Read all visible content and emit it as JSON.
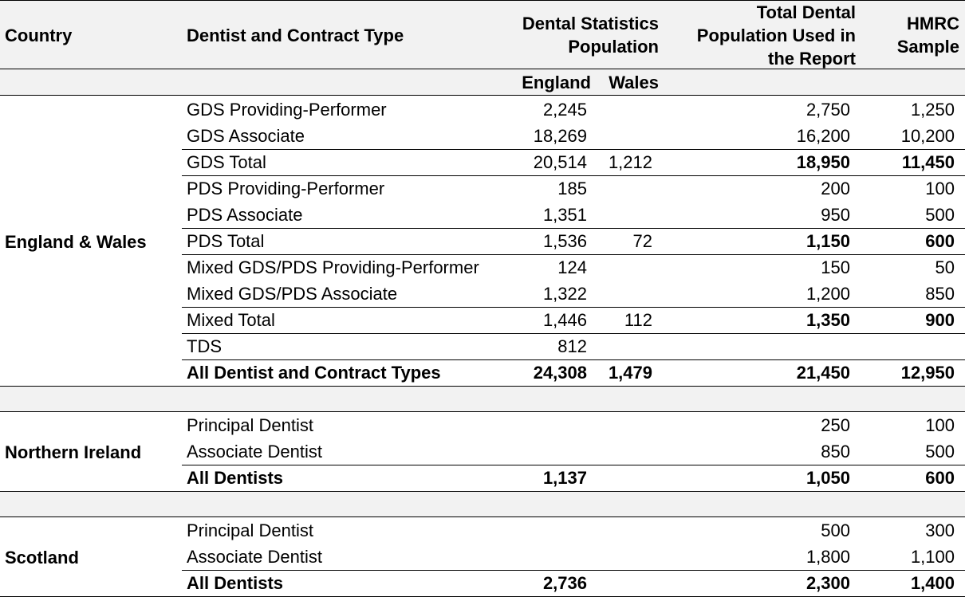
{
  "headers": {
    "country": "Country",
    "type": "Dentist and Contract Type",
    "dental_stats": [
      "Dental Statistics",
      "Population"
    ],
    "total_pop": [
      "Total Dental",
      "Population Used in",
      "the Report"
    ],
    "hmrc": [
      "HMRC",
      "Sample"
    ],
    "england": "England",
    "wales": "Wales"
  },
  "groups": [
    {
      "country": "England & Wales",
      "rows": [
        {
          "type": "GDS Providing-Performer",
          "england": "2,245",
          "wales": "",
          "total": "2,750",
          "hmrc": "1,250",
          "bold": false
        },
        {
          "type": "GDS Associate",
          "england": "18,269",
          "wales": "",
          "total": "16,200",
          "hmrc": "10,200",
          "bold": false
        },
        {
          "type": "GDS Total",
          "england": "20,514",
          "wales": "1,212",
          "total": "18,950",
          "hmrc": "11,450",
          "bold": false,
          "bold_tail": true
        },
        {
          "type": "PDS Providing-Performer",
          "england": "185",
          "wales": "",
          "total": "200",
          "hmrc": "100",
          "bold": false
        },
        {
          "type": "PDS Associate",
          "england": "1,351",
          "wales": "",
          "total": "950",
          "hmrc": "500",
          "bold": false
        },
        {
          "type": "PDS Total",
          "england": "1,536",
          "wales": "72",
          "total": "1,150",
          "hmrc": "600",
          "bold": false,
          "bold_tail": true
        },
        {
          "type": "Mixed GDS/PDS Providing-Performer",
          "england": "124",
          "wales": "",
          "total": "150",
          "hmrc": "50",
          "bold": false
        },
        {
          "type": "Mixed GDS/PDS Associate",
          "england": "1,322",
          "wales": "",
          "total": "1,200",
          "hmrc": "850",
          "bold": false
        },
        {
          "type": "Mixed Total",
          "england": "1,446",
          "wales": "112",
          "total": "1,350",
          "hmrc": "900",
          "bold": false,
          "bold_tail": true
        },
        {
          "type": "TDS",
          "england": "812",
          "wales": "",
          "total": "",
          "hmrc": "",
          "bold": false
        },
        {
          "type": "All Dentist and Contract Types",
          "england": "24,308",
          "wales": "1,479",
          "total": "21,450",
          "hmrc": "12,950",
          "bold": true
        }
      ]
    },
    {
      "country": "Northern Ireland",
      "rows": [
        {
          "type": "Principal Dentist",
          "england": "",
          "wales": "",
          "total": "250",
          "hmrc": "100",
          "bold": false
        },
        {
          "type": "Associate Dentist",
          "england": "",
          "wales": "",
          "total": "850",
          "hmrc": "500",
          "bold": false
        },
        {
          "type": "All Dentists",
          "england": "1,137",
          "wales": "",
          "total": "1,050",
          "hmrc": "600",
          "bold": true
        }
      ]
    },
    {
      "country": "Scotland",
      "rows": [
        {
          "type": "Principal Dentist",
          "england": "",
          "wales": "",
          "total": "500",
          "hmrc": "300",
          "bold": false
        },
        {
          "type": "Associate Dentist",
          "england": "",
          "wales": "",
          "total": "1,800",
          "hmrc": "1,100",
          "bold": false
        },
        {
          "type": "All Dentists",
          "england": "2,736",
          "wales": "",
          "total": "2,300",
          "hmrc": "1,400",
          "bold": true
        }
      ]
    }
  ]
}
